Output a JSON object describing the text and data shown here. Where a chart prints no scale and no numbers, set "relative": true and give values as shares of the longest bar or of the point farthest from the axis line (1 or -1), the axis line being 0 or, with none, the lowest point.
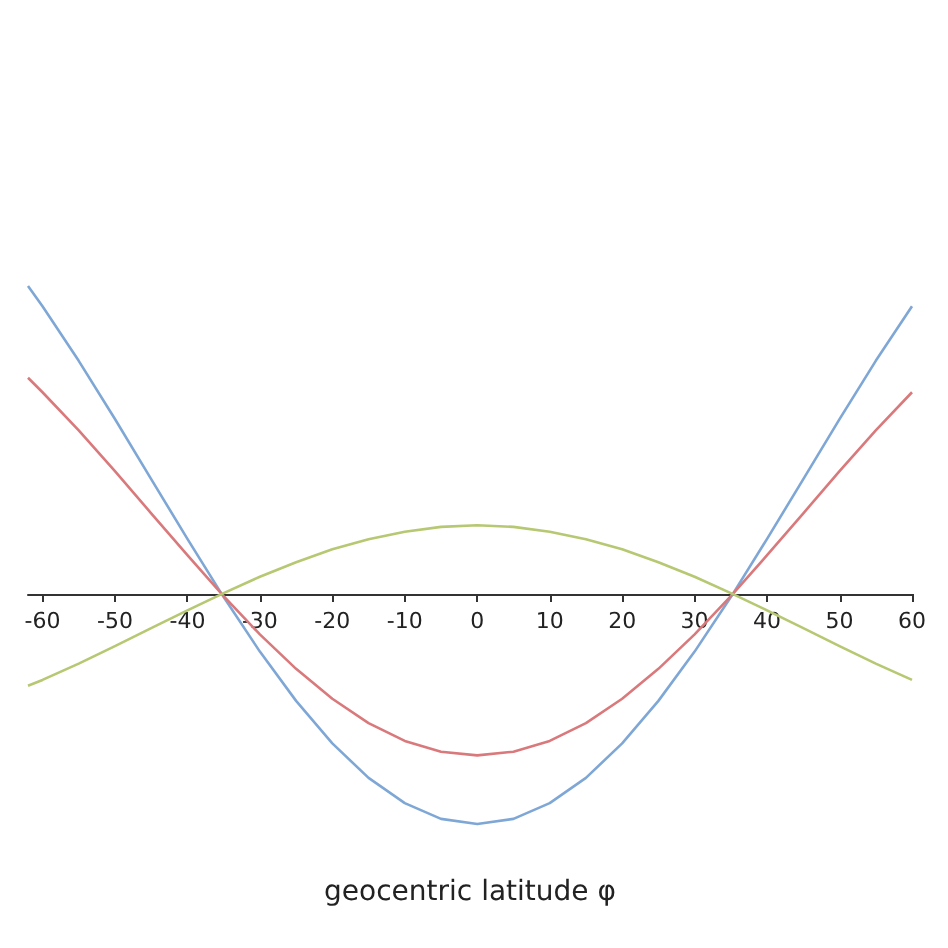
{
  "chart_data": {
    "type": "line",
    "relative": true,
    "xlabel": "geocentric latitude φ",
    "xlim": [
      -62,
      60
    ],
    "xticks": [
      -60,
      -50,
      -40,
      -30,
      -20,
      -10,
      0,
      10,
      20,
      30,
      40,
      50,
      60
    ],
    "x": [
      -62,
      -60,
      -55,
      -50,
      -45,
      -40,
      -35,
      -30,
      -25,
      -20,
      -15,
      -10,
      -5,
      0,
      5,
      10,
      15,
      20,
      25,
      30,
      35,
      40,
      45,
      50,
      55,
      60
    ],
    "series": [
      {
        "color": "#7fa7d6",
        "values": [
          1.0,
          0.934,
          0.757,
          0.568,
          0.373,
          0.179,
          -0.01,
          -0.187,
          -0.347,
          -0.485,
          -0.597,
          -0.679,
          -0.73,
          -0.747,
          -0.73,
          -0.679,
          -0.597,
          -0.485,
          -0.347,
          -0.187,
          -0.01,
          0.179,
          0.373,
          0.568,
          0.757,
          0.934
        ]
      },
      {
        "color": "#d9797b",
        "values": [
          0.702,
          0.655,
          0.531,
          0.399,
          0.262,
          0.126,
          -0.007,
          -0.131,
          -0.243,
          -0.34,
          -0.419,
          -0.477,
          -0.512,
          -0.524,
          -0.512,
          -0.477,
          -0.419,
          -0.34,
          -0.243,
          -0.131,
          -0.007,
          0.126,
          0.262,
          0.399,
          0.531,
          0.655
        ]
      },
      {
        "color": "#b6c872",
        "values": [
          -0.298,
          -0.279,
          -0.226,
          -0.169,
          -0.111,
          -0.053,
          0.003,
          0.056,
          0.103,
          0.145,
          0.178,
          0.202,
          0.218,
          0.223,
          0.218,
          0.202,
          0.178,
          0.145,
          0.103,
          0.056,
          0.003,
          -0.053,
          -0.111,
          -0.169,
          -0.226,
          -0.279
        ]
      }
    ],
    "grid": false,
    "marker": "none"
  }
}
